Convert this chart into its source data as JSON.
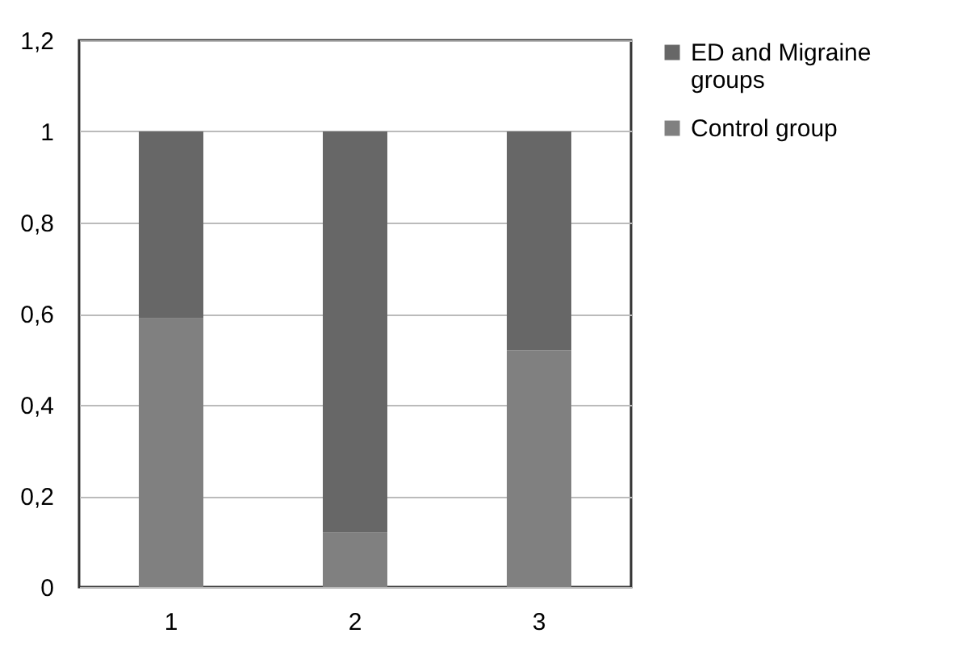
{
  "chart_data": {
    "type": "bar",
    "stacked": true,
    "categories": [
      "1",
      "2",
      "3"
    ],
    "series": [
      {
        "name": "Control group",
        "color": "#808080",
        "values": [
          0.59,
          0.12,
          0.52
        ]
      },
      {
        "name": "ED and Migraine groups",
        "color": "#676767",
        "values": [
          0.41,
          0.88,
          0.48
        ]
      }
    ],
    "ylim": [
      0,
      1.2
    ],
    "yticks": [
      0,
      {
        "value": 0.2,
        "label": "0,2"
      },
      {
        "value": 0.4,
        "label": "0,4"
      },
      {
        "value": 0.6,
        "label": "0,6"
      },
      {
        "value": 0.8,
        "label": "0,8"
      },
      1,
      {
        "value": 1.2,
        "label": "1,2"
      }
    ],
    "grid": "y",
    "legend": "right"
  }
}
